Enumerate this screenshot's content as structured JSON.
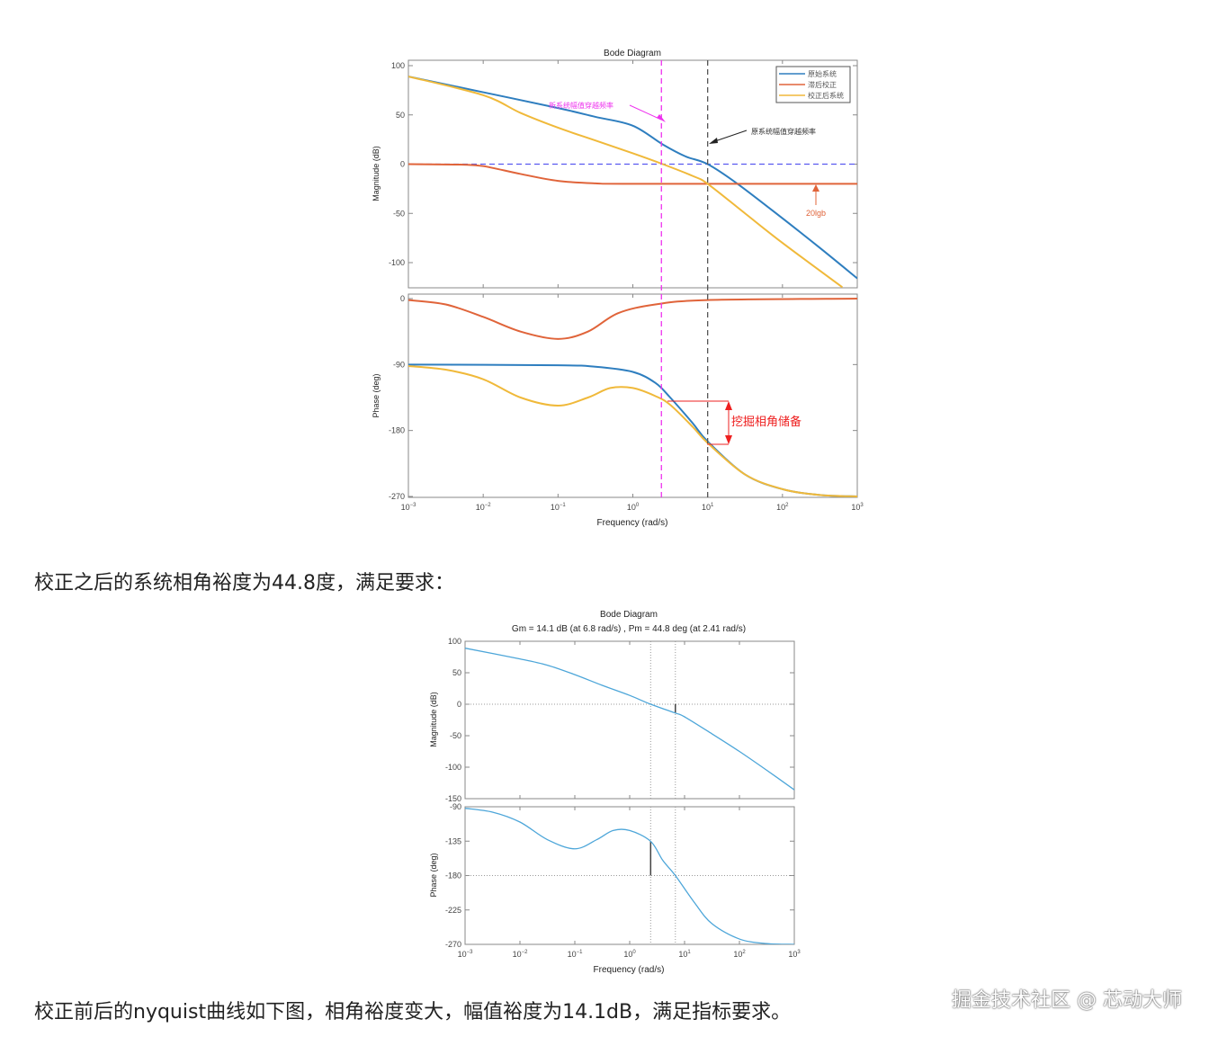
{
  "paragraphs": {
    "after_first_chart": "校正之后的系统相角裕度为44.8度，满足要求：",
    "after_second_chart": "校正前后的nyquist曲线如下图，相角裕度变大，幅值裕度为14.1dB，满足指标要求。"
  },
  "watermark": "掘金技术社区 @ 芯动大师",
  "chart_data": [
    {
      "type": "line",
      "title": "Bode Diagram",
      "xlabel": "Frequency  (rad/s)",
      "xscale": "log",
      "xlim": [
        0.001,
        1000
      ],
      "xticks": [
        "10^-3",
        "10^-2",
        "10^-1",
        "10^0",
        "10^1",
        "10^2",
        "10^3"
      ],
      "grid": false,
      "legend_position": "top-right",
      "magnitude": {
        "ylabel": "Magnitude (dB)",
        "ylim": [
          -125,
          100
        ],
        "yticks": [
          100,
          50,
          0,
          -50,
          -100
        ],
        "series": [
          {
            "name": "原始系统",
            "color": "#2e7ebf",
            "points": [
              [
                0.001,
                89
              ],
              [
                0.01,
                73
              ],
              [
                0.1,
                57
              ],
              [
                0.316,
                48
              ],
              [
                1,
                39
              ],
              [
                2.51,
                20
              ],
              [
                5.01,
                8
              ],
              [
                10,
                0
              ],
              [
                25.1,
                -20
              ],
              [
                100,
                -55
              ],
              [
                316,
                -85
              ],
              [
                1000,
                -116
              ]
            ]
          },
          {
            "name": "滞后校正",
            "color": "#e0643a",
            "points": [
              [
                0.001,
                0
              ],
              [
                0.005,
                -0.5
              ],
              [
                0.01,
                -2
              ],
              [
                0.0316,
                -10
              ],
              [
                0.1,
                -17
              ],
              [
                0.316,
                -19.5
              ],
              [
                1,
                -20
              ],
              [
                1000,
                -20
              ]
            ]
          },
          {
            "name": "校正后系统",
            "color": "#f0b93a",
            "points": [
              [
                0.001,
                89
              ],
              [
                0.01,
                70
              ],
              [
                0.0316,
                52
              ],
              [
                0.1,
                37
              ],
              [
                0.316,
                24
              ],
              [
                1,
                11
              ],
              [
                2.51,
                0
              ],
              [
                6.31,
                -12
              ],
              [
                10,
                -20
              ],
              [
                31.6,
                -50
              ],
              [
                100,
                -80
              ],
              [
                631,
                -125
              ]
            ]
          }
        ]
      },
      "phase": {
        "ylabel": "Phase (deg)",
        "ylim": [
          -270,
          0
        ],
        "yticks": [
          0,
          -90,
          -180,
          -270
        ],
        "series": [
          {
            "name": "原始系统",
            "color": "#2e7ebf",
            "points": [
              [
                0.001,
                -90
              ],
              [
                0.1,
                -91
              ],
              [
                0.316,
                -93
              ],
              [
                1,
                -100
              ],
              [
                2,
                -115
              ],
              [
                3.16,
                -135
              ],
              [
                6.31,
                -170
              ],
              [
                10,
                -195
              ],
              [
                31.6,
                -240
              ],
              [
                100,
                -260
              ],
              [
                316,
                -268
              ],
              [
                1000,
                -270
              ]
            ]
          },
          {
            "name": "滞后校正",
            "color": "#e0643a",
            "points": [
              [
                0.001,
                -2
              ],
              [
                0.00316,
                -8
              ],
              [
                0.01,
                -25
              ],
              [
                0.0316,
                -45
              ],
              [
                0.1,
                -55
              ],
              [
                0.251,
                -45
              ],
              [
                0.631,
                -20
              ],
              [
                2,
                -8
              ],
              [
                10,
                -2
              ],
              [
                1000,
                0
              ]
            ]
          },
          {
            "name": "校正后系统",
            "color": "#f0b93a",
            "points": [
              [
                0.001,
                -92
              ],
              [
                0.00316,
                -97
              ],
              [
                0.01,
                -110
              ],
              [
                0.0316,
                -135
              ],
              [
                0.1,
                -146
              ],
              [
                0.251,
                -135
              ],
              [
                0.5,
                -122
              ],
              [
                1,
                -122
              ],
              [
                2,
                -133
              ],
              [
                3.16,
                -145
              ],
              [
                6.31,
                -175
              ],
              [
                10,
                -197
              ],
              [
                31.6,
                -240
              ],
              [
                100,
                -260
              ],
              [
                316,
                -268
              ],
              [
                1000,
                -270
              ]
            ]
          }
        ]
      },
      "reference_lines": {
        "zero_db_color": "#5a5af0",
        "new_crossover_freq": 2.41,
        "new_crossover_color": "#ee33ee",
        "old_crossover_freq": 10,
        "old_crossover_color": "#555555"
      },
      "annotations": {
        "new_crossover": "新系统幅值穿越频率",
        "old_crossover": "原系统幅值穿越频率",
        "lag_gain": "20lgb",
        "phase_reserve": "挖掘相角储备",
        "phase_reserve_color": "#ee2020"
      }
    },
    {
      "type": "line",
      "title": "Bode Diagram",
      "subtitle": "Gm = 14.1 dB (at 6.8 rad/s) ,  Pm = 44.8 deg (at 2.41 rad/s)",
      "xlabel": "Frequency  (rad/s)",
      "xscale": "log",
      "xlim": [
        0.001,
        1000
      ],
      "xticks": [
        "10^-3",
        "10^-2",
        "10^-1",
        "10^0",
        "10^1",
        "10^2",
        "10^3"
      ],
      "grid": false,
      "gain_margin_db": 14.1,
      "gain_margin_freq": 6.8,
      "phase_margin_deg": 44.8,
      "phase_margin_freq": 2.41,
      "magnitude": {
        "ylabel": "Magnitude (dB)",
        "ylim": [
          -150,
          100
        ],
        "yticks": [
          100,
          50,
          0,
          -50,
          -100,
          -150
        ],
        "series": [
          {
            "color": "#4da6d9",
            "points": [
              [
                0.001,
                89
              ],
              [
                0.01,
                72
              ],
              [
                0.0316,
                62
              ],
              [
                0.1,
                47
              ],
              [
                0.316,
                30
              ],
              [
                1,
                14
              ],
              [
                2.41,
                0
              ],
              [
                6.8,
                -14
              ],
              [
                10,
                -20
              ],
              [
                31.6,
                -47
              ],
              [
                100,
                -75
              ],
              [
                316,
                -105
              ],
              [
                1000,
                -136
              ]
            ]
          }
        ]
      },
      "phase": {
        "ylabel": "Phase (deg)",
        "ylim": [
          -270,
          -90
        ],
        "yticks": [
          -90,
          -135,
          -180,
          -225,
          -270
        ],
        "series": [
          {
            "color": "#4da6d9",
            "points": [
              [
                0.001,
                -92
              ],
              [
                0.00316,
                -97
              ],
              [
                0.01,
                -110
              ],
              [
                0.0316,
                -133
              ],
              [
                0.1,
                -145
              ],
              [
                0.251,
                -133
              ],
              [
                0.5,
                -121
              ],
              [
                1,
                -121
              ],
              [
                2.41,
                -135.2
              ],
              [
                4,
                -160
              ],
              [
                6.8,
                -180
              ],
              [
                15,
                -215
              ],
              [
                31.6,
                -243
              ],
              [
                100,
                -263
              ],
              [
                316,
                -269
              ],
              [
                1000,
                -270
              ]
            ]
          }
        ]
      }
    }
  ]
}
